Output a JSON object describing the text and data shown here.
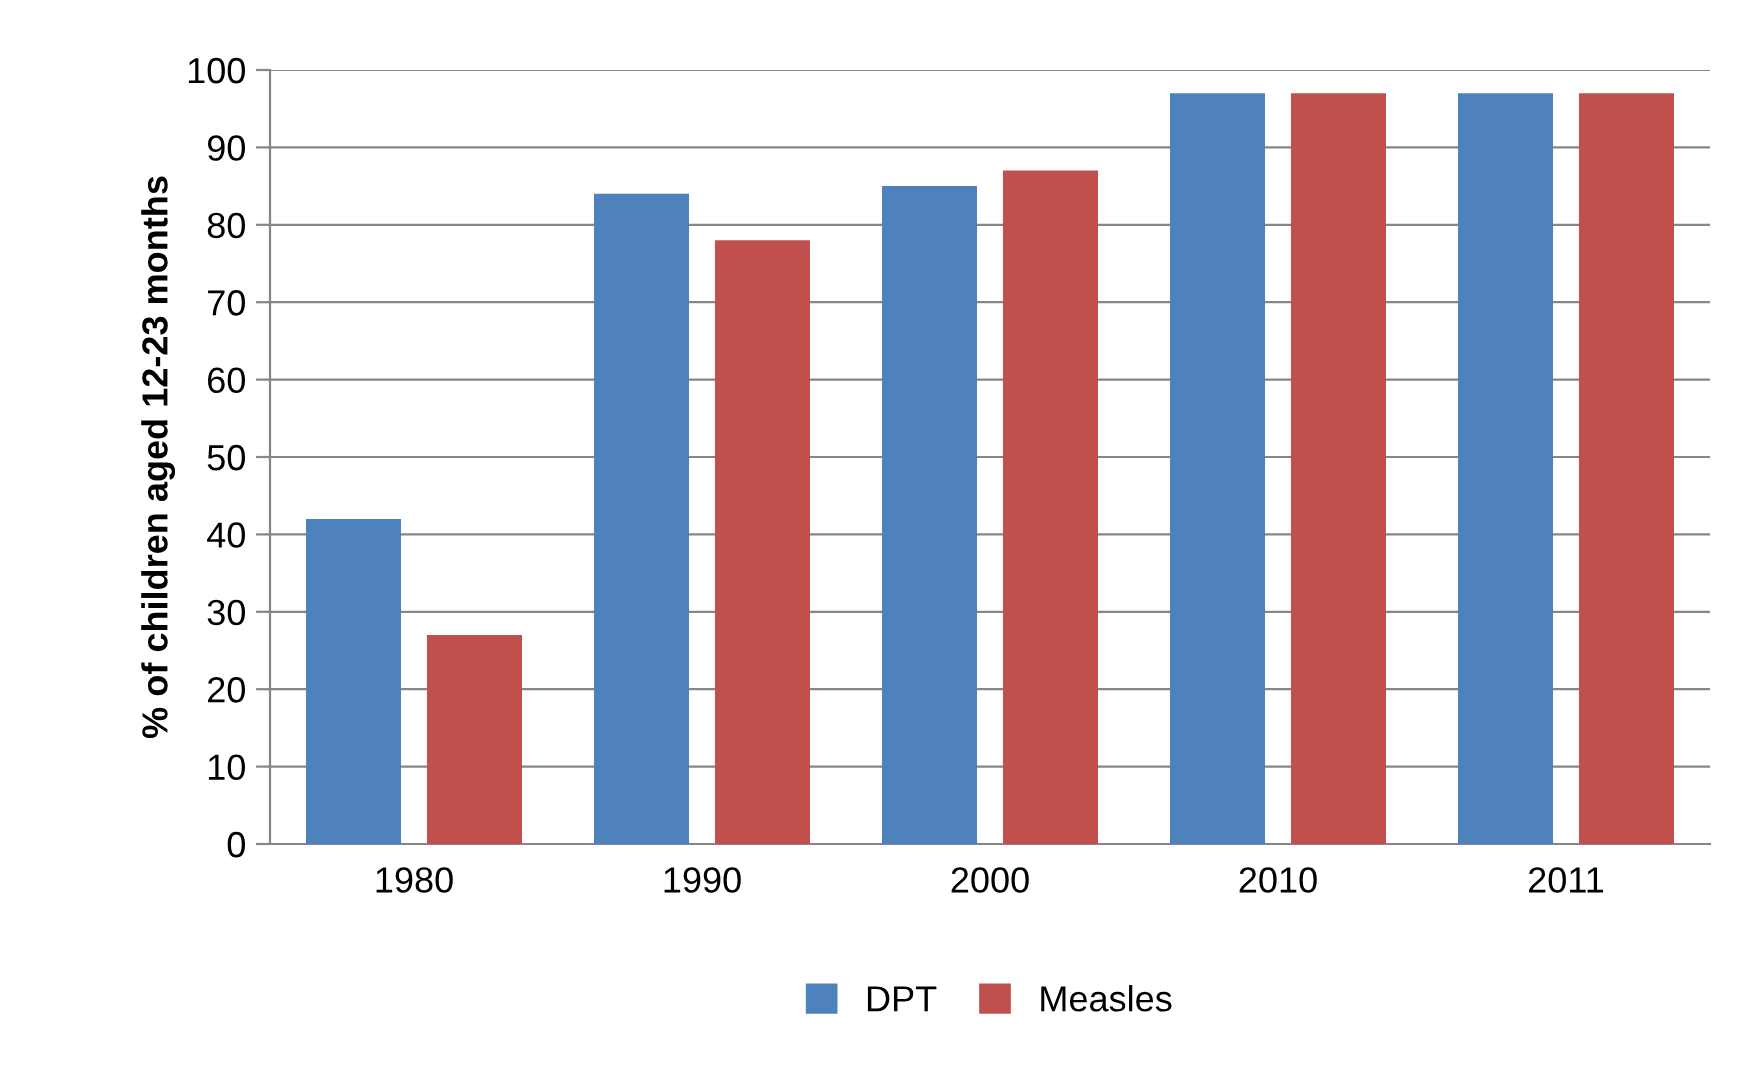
{
  "chart_data": {
    "type": "bar",
    "ylabel": "% of children aged 12-23 months",
    "categories": [
      "1980",
      "1990",
      "2000",
      "2010",
      "2011"
    ],
    "series": [
      {
        "name": "DPT",
        "color": "#4f81bd",
        "values": [
          42,
          84,
          85,
          97,
          97
        ]
      },
      {
        "name": "Measles",
        "color": "#c0504d",
        "values": [
          27,
          78,
          87,
          97,
          97
        ]
      }
    ],
    "ylim": [
      0,
      100
    ],
    "yticks": [
      0,
      10,
      20,
      30,
      40,
      50,
      60,
      70,
      80,
      90,
      100
    ],
    "grid": "y",
    "legend": "bottom"
  }
}
